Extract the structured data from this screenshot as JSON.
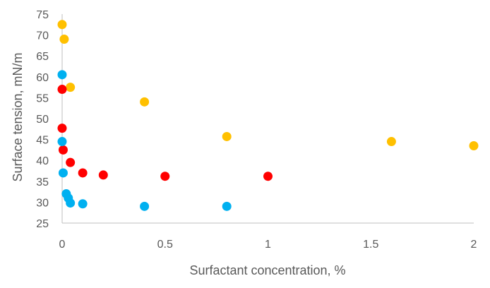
{
  "chart_data": {
    "type": "scatter",
    "title": "",
    "xlabel": "Surfactant concentration, %",
    "ylabel": "Surface tension, mN/m",
    "xlim": [
      0,
      2
    ],
    "ylim": [
      25,
      75
    ],
    "x_ticks": [
      "0",
      "0.5",
      "1",
      "1.5",
      "2"
    ],
    "y_ticks": [
      "25",
      "30",
      "35",
      "40",
      "45",
      "50",
      "55",
      "60",
      "65",
      "70",
      "75"
    ],
    "grid": false,
    "legend": "none",
    "series": [
      {
        "color": "#ffc000",
        "points": [
          {
            "x": 0.0,
            "y": 72.5
          },
          {
            "x": 0.01,
            "y": 69.0
          },
          {
            "x": 0.04,
            "y": 57.5
          },
          {
            "x": 0.4,
            "y": 54.0
          },
          {
            "x": 0.8,
            "y": 45.7
          },
          {
            "x": 1.6,
            "y": 44.5
          },
          {
            "x": 2.0,
            "y": 43.5
          }
        ]
      },
      {
        "color": "#ff0000",
        "points": [
          {
            "x": 0.0,
            "y": 57.0
          },
          {
            "x": 0.0,
            "y": 47.7
          },
          {
            "x": 0.005,
            "y": 42.5
          },
          {
            "x": 0.04,
            "y": 39.5
          },
          {
            "x": 0.1,
            "y": 37.0
          },
          {
            "x": 0.2,
            "y": 36.5
          },
          {
            "x": 0.5,
            "y": 36.2
          },
          {
            "x": 1.0,
            "y": 36.2
          }
        ]
      },
      {
        "color": "#00b0f0",
        "points": [
          {
            "x": 0.0,
            "y": 60.5
          },
          {
            "x": 0.0,
            "y": 44.5
          },
          {
            "x": 0.005,
            "y": 37.0
          },
          {
            "x": 0.02,
            "y": 32.0
          },
          {
            "x": 0.03,
            "y": 31.0
          },
          {
            "x": 0.04,
            "y": 29.8
          },
          {
            "x": 0.1,
            "y": 29.6
          },
          {
            "x": 0.4,
            "y": 29.0
          },
          {
            "x": 0.8,
            "y": 29.0
          }
        ]
      }
    ]
  },
  "colors": {
    "axis": "#bfbfbf",
    "text": "#595959"
  }
}
